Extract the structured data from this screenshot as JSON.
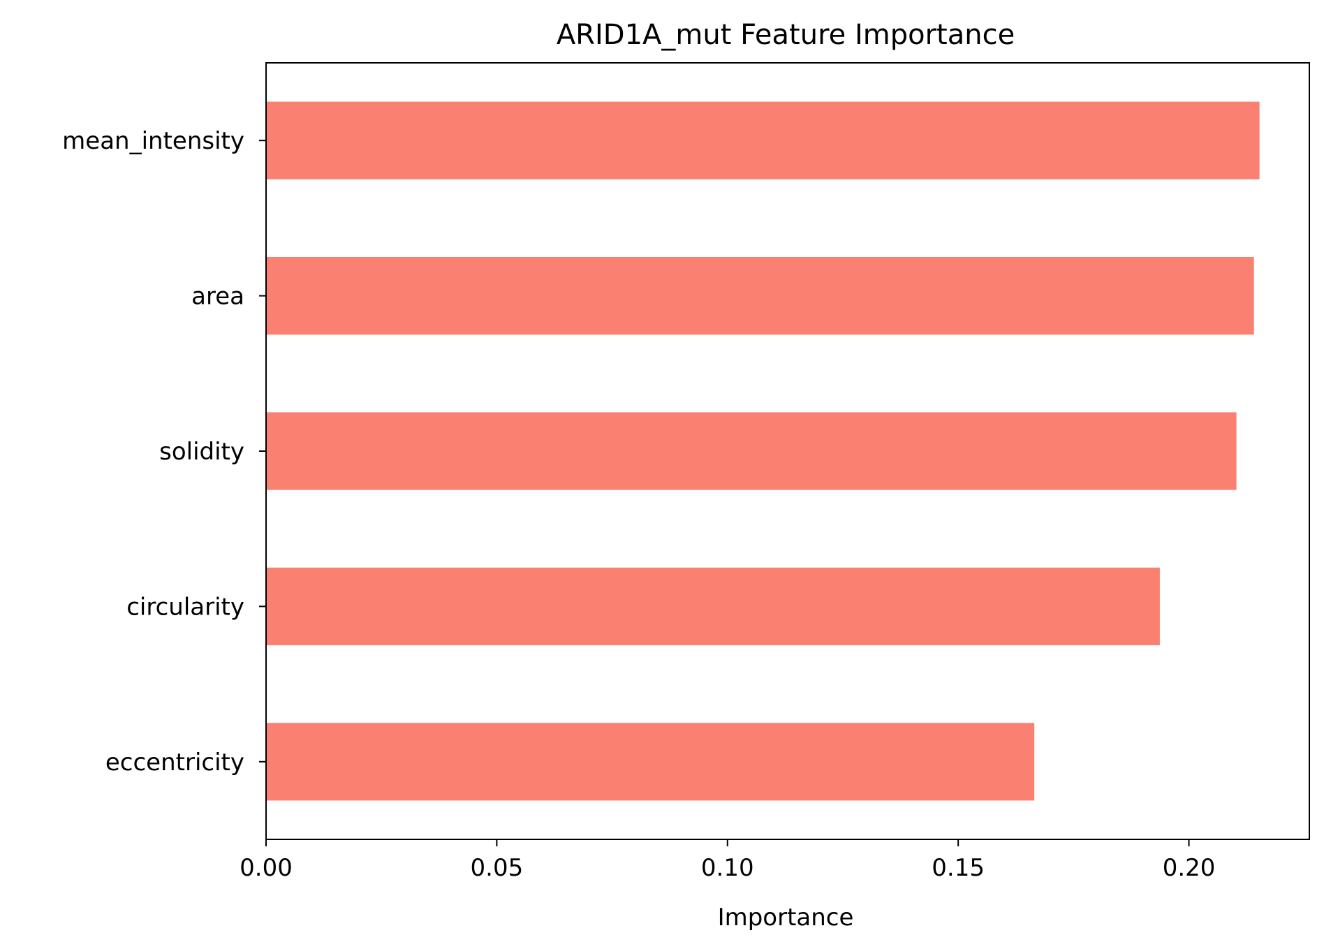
{
  "chart_data": {
    "type": "bar",
    "orientation": "horizontal",
    "title": "ARID1A_mut Feature Importance",
    "xlabel": "Importance",
    "ylabel": "",
    "categories": [
      "mean_intensity",
      "area",
      "solidity",
      "circularity",
      "eccentricity"
    ],
    "values": [
      0.2153,
      0.2141,
      0.2103,
      0.1937,
      0.1665
    ],
    "xlim": [
      0,
      0.2261
    ],
    "xticks": [
      "0.00",
      "0.05",
      "0.10",
      "0.15",
      "0.20"
    ],
    "bar_color": "#fa8072",
    "grid": false,
    "legend": "none"
  }
}
